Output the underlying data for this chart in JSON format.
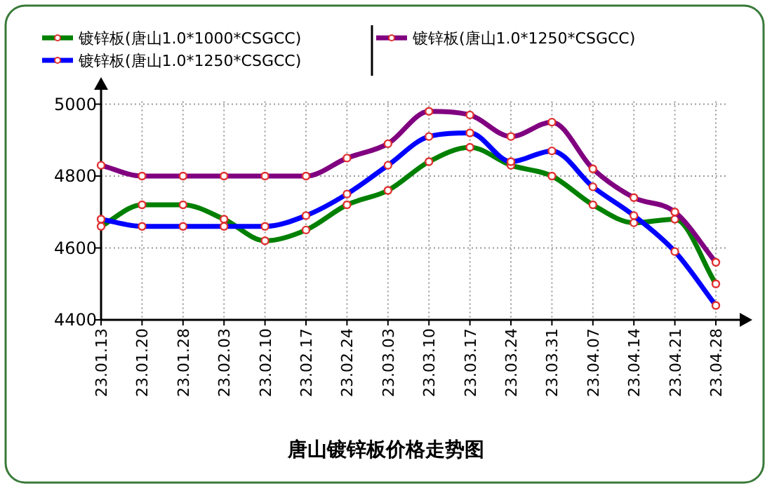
{
  "chart_data": {
    "type": "line",
    "title": "唐山镀锌板价格走势图",
    "categories": [
      "23.01.13",
      "23.01.20",
      "23.01.28",
      "23.02.03",
      "23.02.10",
      "23.02.17",
      "23.02.24",
      "23.03.03",
      "23.03.10",
      "23.03.17",
      "23.03.24",
      "23.03.31",
      "23.04.07",
      "23.04.14",
      "23.04.21",
      "23.04.28"
    ],
    "series": [
      {
        "name": "镀锌板(唐山1.0*1000*CSGCC)",
        "color": "#008000",
        "values": [
          4660,
          4720,
          4720,
          4680,
          4620,
          4650,
          4720,
          4760,
          4840,
          4880,
          4830,
          4800,
          4720,
          4670,
          4680,
          4500
        ]
      },
      {
        "name": "镀锌板(唐山1.0*1250*CSGCC)",
        "color": "#0000ff",
        "values": [
          4680,
          4660,
          4660,
          4660,
          4660,
          4690,
          4750,
          4830,
          4910,
          4920,
          4840,
          4870,
          4770,
          4690,
          4590,
          4440
        ]
      },
      {
        "name": "镀锌板(唐山1.0*1250*CSGCC)",
        "color": "#800080",
        "values": [
          4830,
          4800,
          4800,
          4800,
          4800,
          4800,
          4850,
          4890,
          4980,
          4970,
          4910,
          4950,
          4820,
          4740,
          4700,
          4560
        ]
      }
    ],
    "ylim": [
      4400,
      5040
    ],
    "yticks": [
      4400,
      4600,
      4800,
      5000
    ],
    "grid": true,
    "legend": "top",
    "marker": "circle",
    "line_style": "solid"
  }
}
